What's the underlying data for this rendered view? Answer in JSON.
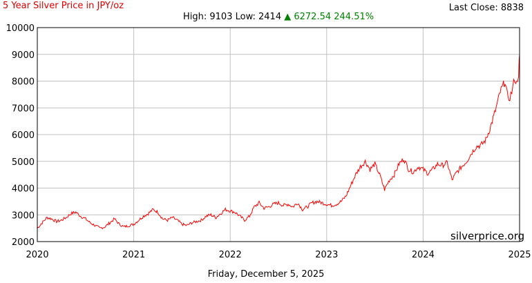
{
  "header": {
    "title": "5 Year Silver Price in JPY/oz",
    "last_close": "Last Close: 8838",
    "high_low": "High: 9103 Low: 2414",
    "change": "▲ 6272.54 244.51%"
  },
  "footer": {
    "date": "Friday, December 5, 2025"
  },
  "watermark": "silverprice.org",
  "colors": {
    "title": "#e00000",
    "line": "#ff0000",
    "grid": "#c0c0c0",
    "change": "#008000"
  },
  "chart_data": {
    "type": "line",
    "title": "5 Year Silver Price in JPY/oz",
    "grid": true,
    "ylim": [
      2000,
      10000
    ],
    "y_ticks": [
      "10000",
      "9000",
      "8000",
      "7000",
      "6000",
      "5000",
      "4000",
      "3000",
      "2000"
    ],
    "x_ticks": [
      "2020",
      "2021",
      "2022",
      "2023",
      "2024",
      "2025"
    ],
    "xlim": [
      2020,
      2025
    ],
    "series": [
      {
        "x": [
          2020.0,
          2020.05,
          2020.1,
          2020.15,
          2020.2,
          2020.25,
          2020.3,
          2020.35,
          2020.4,
          2020.45,
          2020.5,
          2020.55,
          2020.6,
          2020.65,
          2020.7,
          2020.75,
          2020.8,
          2020.85,
          2020.9,
          2020.95,
          2021.0,
          2021.05,
          2021.1,
          2021.15,
          2021.2,
          2021.25,
          2021.3,
          2021.35,
          2021.4,
          2021.45,
          2021.5,
          2021.55,
          2021.6,
          2021.65,
          2021.7,
          2021.75,
          2021.8,
          2021.85,
          2021.9,
          2021.95,
          2022.0,
          2022.05,
          2022.1,
          2022.15,
          2022.2,
          2022.25,
          2022.3,
          2022.35,
          2022.4,
          2022.45,
          2022.5,
          2022.55,
          2022.6,
          2022.65,
          2022.7,
          2022.75,
          2022.8,
          2022.85,
          2022.9,
          2022.95,
          2023.0,
          2023.05,
          2023.1,
          2023.15,
          2023.2,
          2023.25,
          2023.3,
          2023.35,
          2023.4,
          2023.45,
          2023.5,
          2023.55,
          2023.6,
          2023.65,
          2023.7,
          2023.75,
          2023.8,
          2023.85,
          2023.9,
          2023.95,
          2024.0,
          2024.05,
          2024.1,
          2024.15,
          2024.2,
          2024.25,
          2024.3,
          2024.35,
          2024.4,
          2024.45,
          2024.5,
          2024.55,
          2024.6,
          2024.65,
          2024.7,
          2024.75,
          2024.8,
          2024.85,
          2024.88,
          2024.9,
          2024.92,
          2024.95,
          2024.97,
          2024.99,
          2025.0
        ],
        "values": [
          2500,
          2700,
          2900,
          2850,
          2750,
          2800,
          2900,
          3050,
          3100,
          2950,
          2850,
          2700,
          2600,
          2500,
          2550,
          2700,
          2850,
          2650,
          2550,
          2600,
          2650,
          2800,
          2950,
          3050,
          3200,
          3100,
          2850,
          2800,
          2900,
          2800,
          2650,
          2600,
          2700,
          2750,
          2800,
          2950,
          3000,
          2900,
          3050,
          3200,
          3150,
          3100,
          2950,
          2800,
          2950,
          3300,
          3450,
          3250,
          3300,
          3400,
          3450,
          3350,
          3400,
          3300,
          3450,
          3200,
          3300,
          3450,
          3500,
          3450,
          3400,
          3350,
          3400,
          3500,
          3700,
          4100,
          4500,
          4800,
          5000,
          4700,
          4900,
          4500,
          3950,
          4300,
          4500,
          4900,
          5100,
          4700,
          4600,
          4800,
          4700,
          4550,
          4700,
          4900,
          4850,
          4950,
          4300,
          4600,
          4800,
          5000,
          5300,
          5550,
          5600,
          5800,
          6300,
          6900,
          7600,
          8000,
          7300,
          7400,
          7600,
          8100,
          7900,
          8300,
          9000
        ]
      }
    ]
  }
}
